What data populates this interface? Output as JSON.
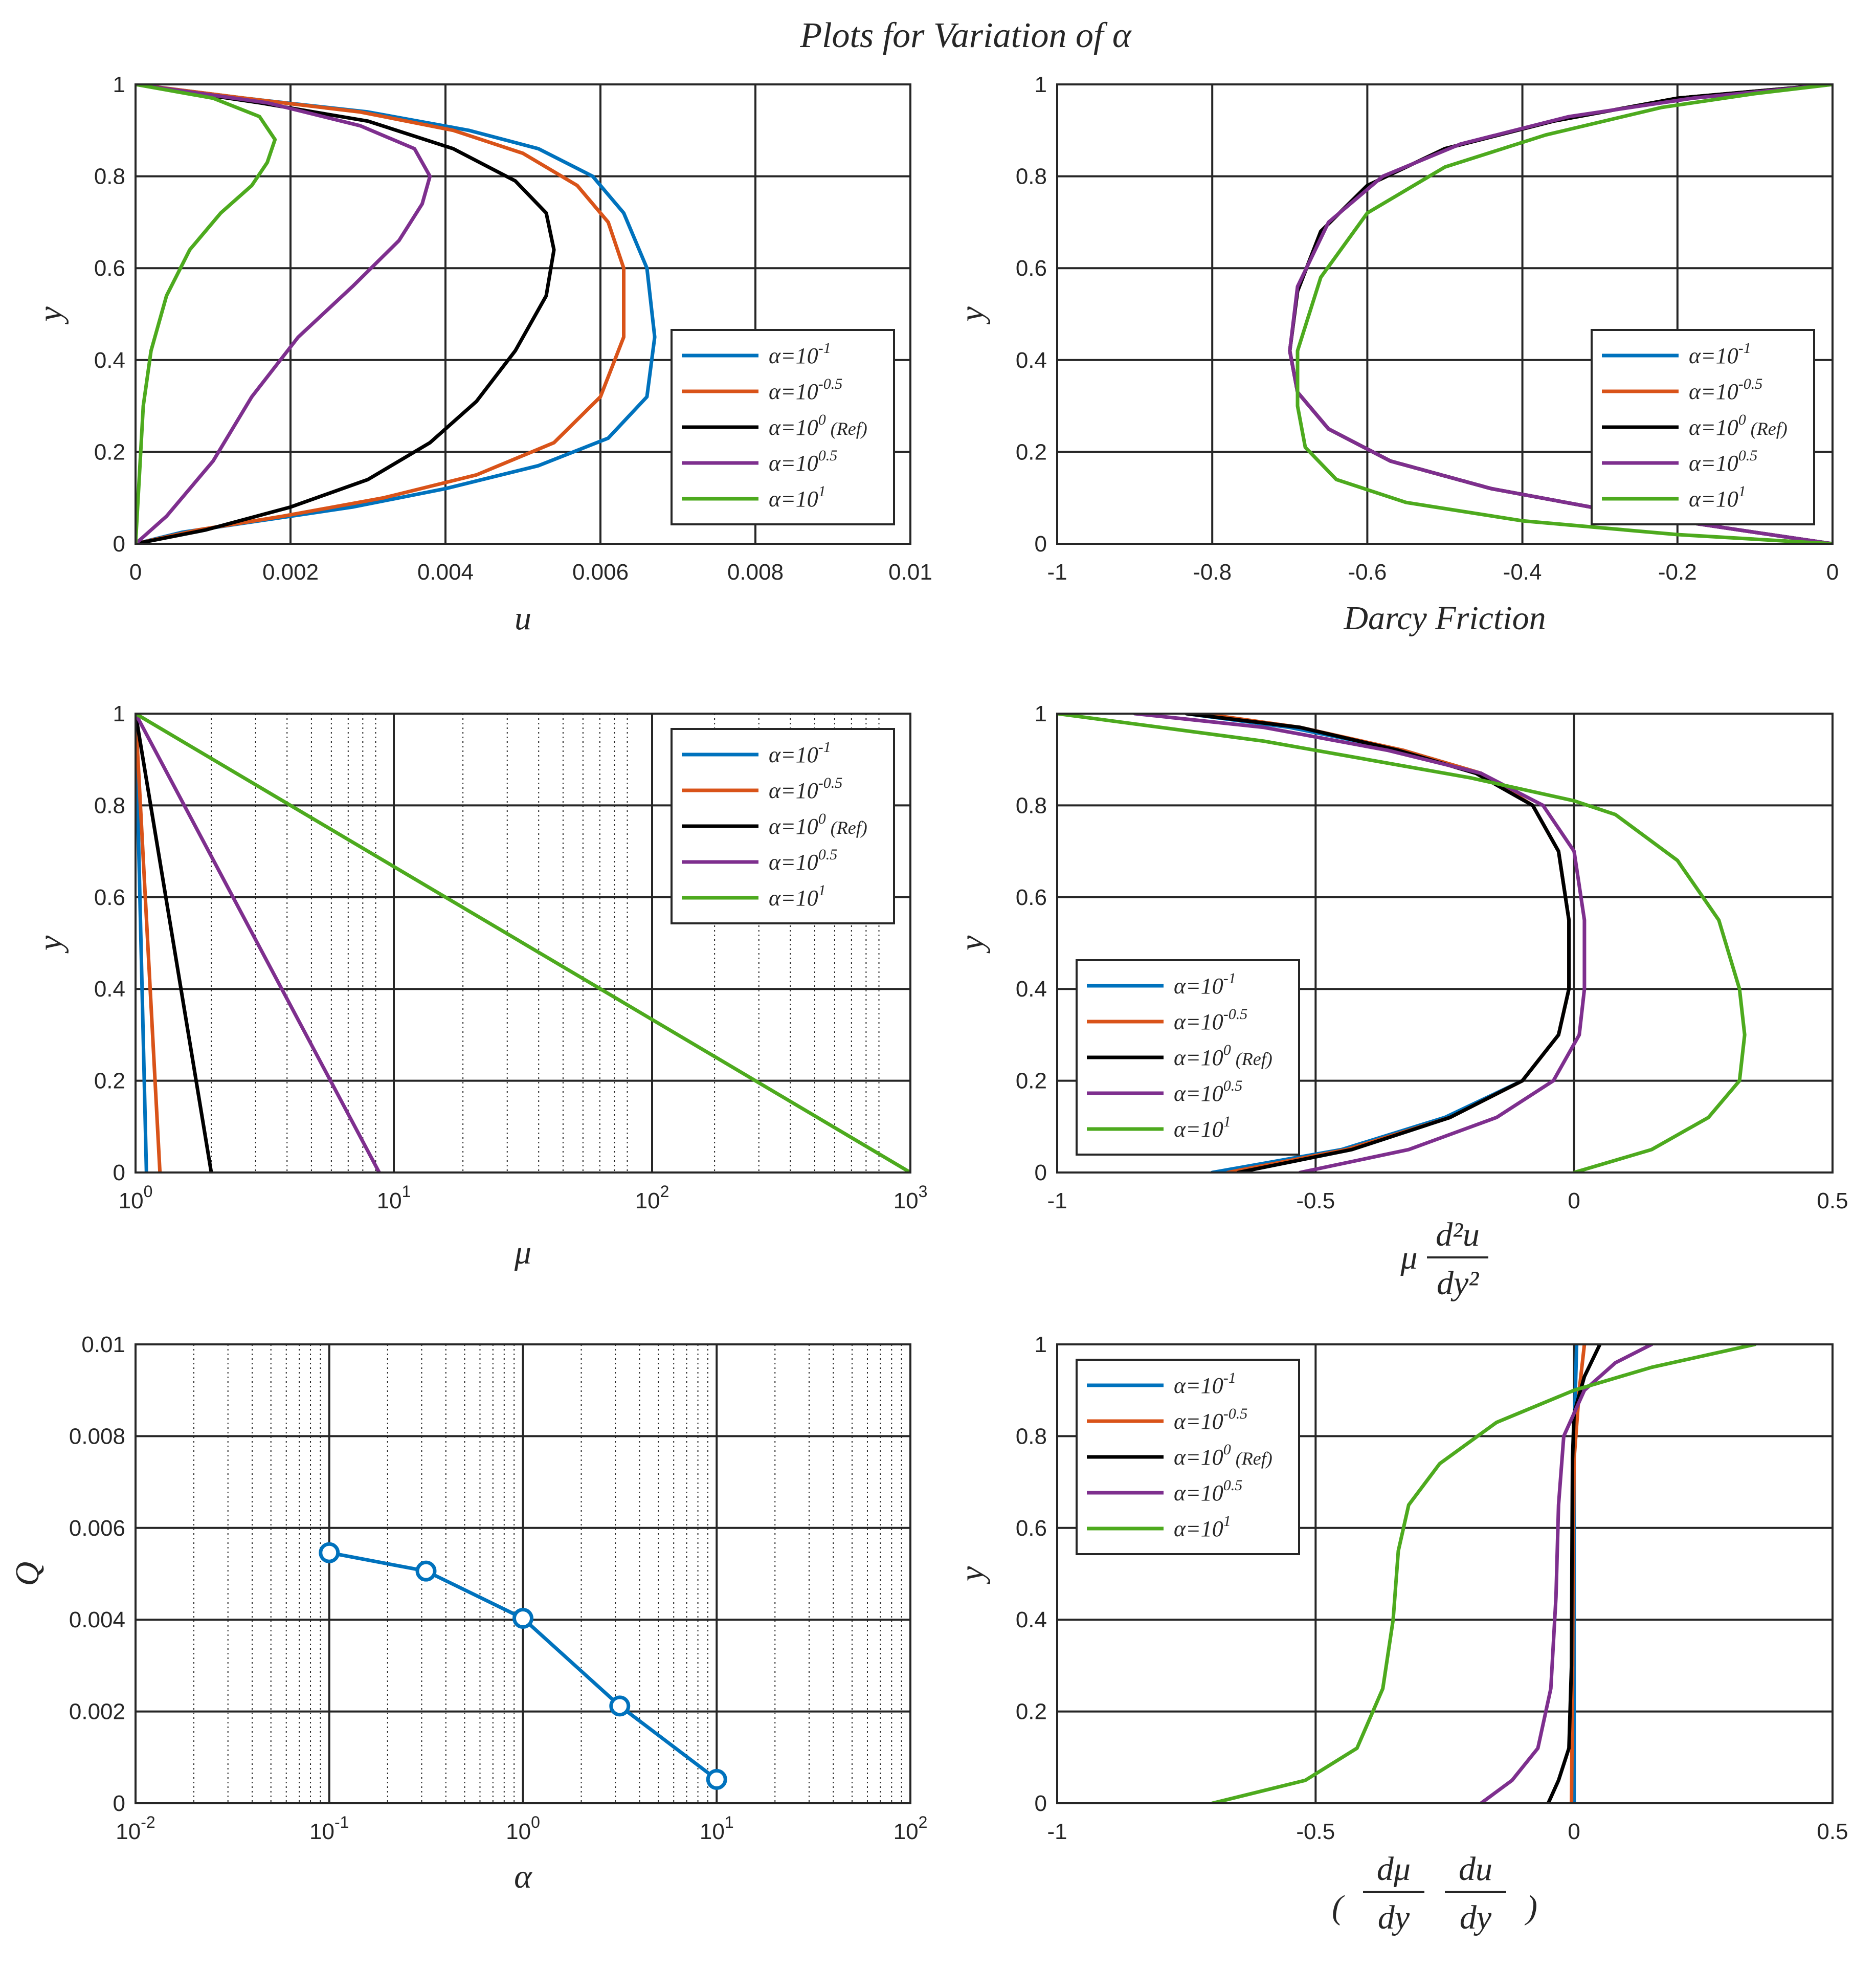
{
  "title": "Plots for Variation of α",
  "chart_data": [
    {
      "id": "u-profile",
      "type": "line",
      "xlabel": "u",
      "ylabel": "y",
      "xlim": [
        0,
        0.01
      ],
      "ylim": [
        0,
        1
      ],
      "xticks": [
        "0",
        "0.002",
        "0.004",
        "0.006",
        "0.008",
        "0.01"
      ],
      "yticks": [
        "0",
        "0.2",
        "0.4",
        "0.6",
        "0.8",
        "1"
      ],
      "grid": true,
      "legend": "right",
      "series": [
        {
          "name": "α=10^-1",
          "x": [
            0,
            0.0006,
            0.0016,
            0.0028,
            0.004,
            0.0052,
            0.0061,
            0.0066,
            0.0067,
            0.0066,
            0.0063,
            0.0059,
            0.0052,
            0.0043,
            0.003,
            0.0014,
            0
          ],
          "y": [
            0,
            0.025,
            0.05,
            0.08,
            0.12,
            0.17,
            0.23,
            0.32,
            0.45,
            0.6,
            0.72,
            0.8,
            0.86,
            0.9,
            0.94,
            0.97,
            1
          ]
        },
        {
          "name": "α=10^-0.5",
          "x": [
            0,
            0.0008,
            0.0019,
            0.0032,
            0.0044,
            0.0054,
            0.006,
            0.0063,
            0.0063,
            0.0061,
            0.0057,
            0.005,
            0.0041,
            0.0029,
            0.0014,
            0
          ],
          "y": [
            0,
            0.03,
            0.06,
            0.1,
            0.15,
            0.22,
            0.32,
            0.45,
            0.6,
            0.7,
            0.78,
            0.85,
            0.9,
            0.94,
            0.97,
            1
          ]
        },
        {
          "name": "α=10^0 (Ref)",
          "x": [
            0,
            0.0009,
            0.002,
            0.003,
            0.0038,
            0.0044,
            0.0049,
            0.0053,
            0.0054,
            0.0053,
            0.0049,
            0.0041,
            0.003,
            0.0016,
            0
          ],
          "y": [
            0,
            0.03,
            0.08,
            0.14,
            0.22,
            0.31,
            0.42,
            0.54,
            0.64,
            0.72,
            0.79,
            0.86,
            0.92,
            0.96,
            1
          ]
        },
        {
          "name": "α=10^0.5",
          "x": [
            0,
            0.0004,
            0.001,
            0.0015,
            0.0021,
            0.0028,
            0.0034,
            0.0037,
            0.0038,
            0.0036,
            0.0029,
            0.0017,
            0
          ],
          "y": [
            0,
            0.06,
            0.18,
            0.32,
            0.45,
            0.56,
            0.66,
            0.74,
            0.8,
            0.86,
            0.91,
            0.96,
            1
          ]
        },
        {
          "name": "α=10^1",
          "x": [
            0,
            5e-05,
            0.0001,
            0.0002,
            0.0004,
            0.0007,
            0.0011,
            0.0015,
            0.0017,
            0.0018,
            0.0016,
            0.001,
            0
          ],
          "y": [
            0,
            0.15,
            0.3,
            0.42,
            0.54,
            0.64,
            0.72,
            0.78,
            0.83,
            0.88,
            0.93,
            0.97,
            1
          ]
        }
      ]
    },
    {
      "id": "darcy",
      "type": "line",
      "xlabel": "Darcy Friction",
      "ylabel": "y",
      "xlim": [
        -1,
        0
      ],
      "ylim": [
        0,
        1
      ],
      "xticks": [
        "-1",
        "-0.8",
        "-0.6",
        "-0.4",
        "-0.2",
        "0"
      ],
      "yticks": [
        "0",
        "0.2",
        "0.4",
        "0.6",
        "0.8",
        "1"
      ],
      "grid": true,
      "legend": "right",
      "series": [
        {
          "name": "α=10^-1",
          "x": [
            0,
            -0.12,
            -0.28,
            -0.44,
            -0.57,
            -0.65,
            -0.69,
            -0.7,
            -0.69,
            -0.66,
            -0.6,
            -0.5,
            -0.36,
            -0.2,
            0
          ],
          "y": [
            0,
            0.03,
            0.07,
            0.12,
            0.18,
            0.25,
            0.33,
            0.42,
            0.55,
            0.68,
            0.78,
            0.86,
            0.92,
            0.97,
            1
          ]
        },
        {
          "name": "α=10^-0.5",
          "x": [
            0,
            -0.12,
            -0.28,
            -0.44,
            -0.57,
            -0.65,
            -0.69,
            -0.7,
            -0.69,
            -0.66,
            -0.6,
            -0.5,
            -0.36,
            -0.2,
            0
          ],
          "y": [
            0,
            0.03,
            0.07,
            0.12,
            0.18,
            0.25,
            0.33,
            0.42,
            0.55,
            0.68,
            0.78,
            0.86,
            0.92,
            0.97,
            1
          ]
        },
        {
          "name": "α=10^0 (Ref)",
          "x": [
            0,
            -0.12,
            -0.28,
            -0.44,
            -0.57,
            -0.65,
            -0.69,
            -0.7,
            -0.69,
            -0.66,
            -0.6,
            -0.5,
            -0.36,
            -0.2,
            0
          ],
          "y": [
            0,
            0.03,
            0.07,
            0.12,
            0.18,
            0.25,
            0.33,
            0.42,
            0.55,
            0.68,
            0.78,
            0.86,
            0.92,
            0.97,
            1
          ]
        },
        {
          "name": "α=10^0.5",
          "x": [
            0,
            -0.12,
            -0.28,
            -0.44,
            -0.57,
            -0.65,
            -0.69,
            -0.7,
            -0.69,
            -0.65,
            -0.58,
            -0.48,
            -0.34,
            -0.18,
            0
          ],
          "y": [
            0,
            0.03,
            0.07,
            0.12,
            0.18,
            0.25,
            0.33,
            0.42,
            0.56,
            0.7,
            0.8,
            0.87,
            0.93,
            0.97,
            1
          ]
        },
        {
          "name": "α=10^1",
          "x": [
            0,
            -0.2,
            -0.4,
            -0.55,
            -0.64,
            -0.68,
            -0.69,
            -0.69,
            -0.66,
            -0.6,
            -0.5,
            -0.37,
            -0.22,
            -0.1,
            0
          ],
          "y": [
            0,
            0.02,
            0.05,
            0.09,
            0.14,
            0.21,
            0.3,
            0.42,
            0.58,
            0.72,
            0.82,
            0.89,
            0.95,
            0.98,
            1
          ]
        }
      ]
    },
    {
      "id": "mu",
      "type": "line",
      "xlabel": "μ",
      "ylabel": "y",
      "xscale": "log",
      "xlim": [
        1,
        1200
      ],
      "ylim": [
        0,
        1
      ],
      "xticks": [
        "10^0",
        "10^1",
        "10^2",
        "10^3"
      ],
      "yticks": [
        "0",
        "0.2",
        "0.4",
        "0.6",
        "0.8",
        "1"
      ],
      "grid": true,
      "legend": "top-right",
      "series": [
        {
          "name": "α=10^-1",
          "x": [
            1.105,
            1
          ],
          "y": [
            0,
            1
          ]
        },
        {
          "name": "α=10^-0.5",
          "x": [
            1.25,
            1
          ],
          "y": [
            0,
            1
          ]
        },
        {
          "name": "α=10^0 (Ref)",
          "x": [
            2.0,
            1
          ],
          "y": [
            0,
            1
          ]
        },
        {
          "name": "α=10^0.5",
          "x": [
            9.3,
            1
          ],
          "y": [
            0,
            1
          ]
        },
        {
          "name": "α=10^1",
          "x": [
            1200,
            1
          ],
          "y": [
            0,
            1
          ]
        }
      ]
    },
    {
      "id": "mu-d2u",
      "type": "line",
      "xlabel": "μ d²u/dy²",
      "ylabel": "y",
      "xlim": [
        -1,
        0.5
      ],
      "ylim": [
        0,
        1
      ],
      "xticks": [
        "-1",
        "-0.5",
        "0",
        "0.5"
      ],
      "yticks": [
        "0",
        "0.2",
        "0.4",
        "0.6",
        "0.8",
        "1"
      ],
      "grid": true,
      "legend": "bottom-left",
      "series": [
        {
          "name": "α=10^-1",
          "x": [
            -0.7,
            -0.45,
            -0.25,
            -0.1,
            -0.03,
            -0.01,
            -0.01,
            -0.03,
            -0.08,
            -0.18,
            -0.33,
            -0.55,
            -0.75
          ],
          "y": [
            0,
            0.05,
            0.12,
            0.2,
            0.3,
            0.4,
            0.55,
            0.7,
            0.8,
            0.87,
            0.92,
            0.97,
            1
          ]
        },
        {
          "name": "α=10^-0.5",
          "x": [
            -0.67,
            -0.44,
            -0.24,
            -0.1,
            -0.03,
            -0.01,
            -0.01,
            -0.03,
            -0.08,
            -0.18,
            -0.33,
            -0.53,
            -0.72
          ],
          "y": [
            0,
            0.05,
            0.12,
            0.2,
            0.3,
            0.4,
            0.55,
            0.7,
            0.8,
            0.87,
            0.92,
            0.97,
            1
          ]
        },
        {
          "name": "α=10^0 (Ref)",
          "x": [
            -0.65,
            -0.43,
            -0.24,
            -0.1,
            -0.03,
            -0.01,
            -0.01,
            -0.03,
            -0.08,
            -0.19,
            -0.34,
            -0.53,
            -0.75
          ],
          "y": [
            0,
            0.05,
            0.12,
            0.2,
            0.3,
            0.4,
            0.55,
            0.7,
            0.8,
            0.87,
            0.92,
            0.97,
            1
          ]
        },
        {
          "name": "α=10^0.5",
          "x": [
            -0.53,
            -0.32,
            -0.15,
            -0.04,
            0.01,
            0.02,
            0.02,
            0.0,
            -0.06,
            -0.18,
            -0.36,
            -0.6,
            -0.85
          ],
          "y": [
            0,
            0.05,
            0.12,
            0.2,
            0.3,
            0.4,
            0.55,
            0.7,
            0.8,
            0.87,
            0.92,
            0.97,
            1
          ]
        },
        {
          "name": "α=10^1",
          "x": [
            0,
            0.15,
            0.26,
            0.32,
            0.33,
            0.32,
            0.28,
            0.2,
            0.08,
            0.0,
            -0.2,
            -0.6,
            -1.0
          ],
          "y": [
            0,
            0.05,
            0.12,
            0.2,
            0.3,
            0.4,
            0.55,
            0.68,
            0.78,
            0.81,
            0.86,
            0.94,
            1
          ]
        }
      ]
    },
    {
      "id": "Q-alpha",
      "type": "line",
      "xlabel": "α",
      "ylabel": "Q",
      "xscale": "log",
      "xlim": [
        0.01,
        100
      ],
      "ylim": [
        0,
        0.01
      ],
      "xticks": [
        "10^-2",
        "10^-1",
        "10^0",
        "10^1",
        "10^2"
      ],
      "yticks": [
        "0",
        "0.002",
        "0.004",
        "0.006",
        "0.008",
        "0.01"
      ],
      "grid": true,
      "markers": "circle",
      "series": [
        {
          "x": [
            0.1,
            0.316,
            1,
            3.16,
            10
          ],
          "y": [
            0.00546,
            0.00506,
            0.00403,
            0.00212,
            0.00052
          ]
        }
      ]
    },
    {
      "id": "dmu-du",
      "type": "line",
      "xlabel": "(dμ/dy du/dy)",
      "ylabel": "y",
      "xlim": [
        -1,
        0.5
      ],
      "ylim": [
        0,
        1
      ],
      "xticks": [
        "-1",
        "-0.5",
        "0",
        "0.5"
      ],
      "yticks": [
        "0",
        "0.2",
        "0.4",
        "0.6",
        "0.8",
        "1"
      ],
      "grid": true,
      "legend": "top-left",
      "series": [
        {
          "name": "α=10^-1",
          "x": [
            0.0,
            0.0,
            0.0,
            0.0,
            0.005
          ],
          "y": [
            0,
            0.25,
            0.5,
            0.8,
            1
          ]
        },
        {
          "name": "α=10^-0.5",
          "x": [
            -0.005,
            -0.003,
            -0.002,
            0.0,
            0.01,
            0.02
          ],
          "y": [
            0,
            0.25,
            0.5,
            0.75,
            0.9,
            1
          ]
        },
        {
          "name": "α=10^0 (Ref)",
          "x": [
            -0.05,
            -0.03,
            -0.01,
            -0.005,
            -0.004,
            -0.003,
            0.0,
            0.02,
            0.05
          ],
          "y": [
            0,
            0.05,
            0.12,
            0.3,
            0.55,
            0.75,
            0.85,
            0.93,
            1
          ]
        },
        {
          "name": "α=10^0.5",
          "x": [
            -0.18,
            -0.12,
            -0.07,
            -0.045,
            -0.035,
            -0.03,
            -0.02,
            0.02,
            0.08,
            0.15
          ],
          "y": [
            0,
            0.05,
            0.12,
            0.25,
            0.45,
            0.65,
            0.8,
            0.9,
            0.96,
            1
          ]
        },
        {
          "name": "α=10^1",
          "x": [
            -0.7,
            -0.52,
            -0.42,
            -0.37,
            -0.35,
            -0.34,
            -0.32,
            -0.26,
            -0.15,
            0.0,
            0.15,
            0.35
          ],
          "y": [
            0,
            0.05,
            0.12,
            0.25,
            0.4,
            0.55,
            0.65,
            0.74,
            0.83,
            0.9,
            0.95,
            1
          ]
        }
      ]
    }
  ],
  "colors": {
    "series": [
      "#0072BD",
      "#D95319",
      "#000000",
      "#7E2F8E",
      "#4DAA1E"
    ],
    "grid_major": "#262626",
    "grid_minor": "#262626",
    "text": "#262626"
  }
}
